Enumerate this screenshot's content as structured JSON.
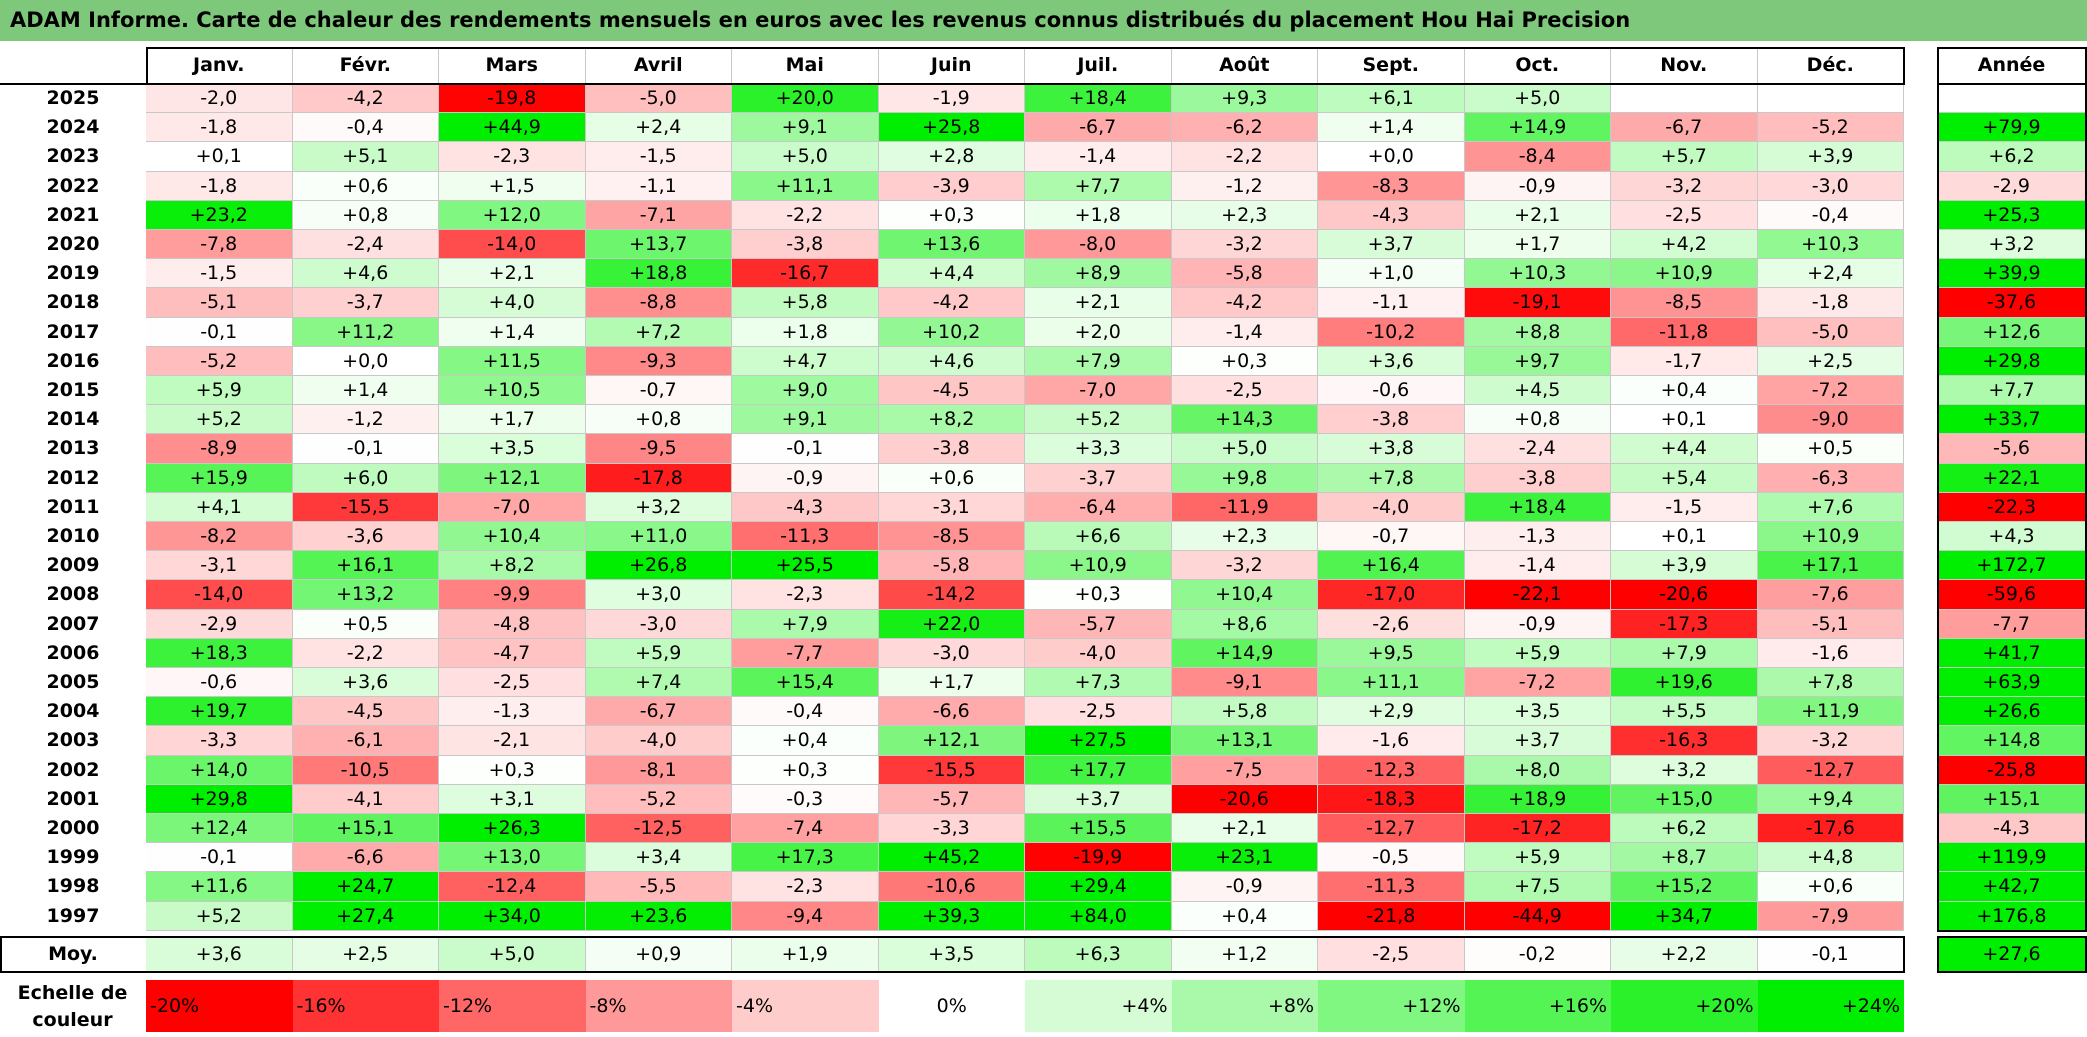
{
  "title": "ADAM Informe. Carte de chaleur des rendements mensuels en euros avec les revenus connus distribués du placement Hou Hai Precision",
  "months": [
    "Janv.",
    "Févr.",
    "Mars",
    "Avril",
    "Mai",
    "Juin",
    "Juil.",
    "Août",
    "Sept.",
    "Oct.",
    "Nov.",
    "Déc."
  ],
  "annual_header": "Année",
  "average_label": "Moy.",
  "scale_label": "Echelle de couleur",
  "colors": {
    "title_bar": "#7dc87a",
    "negative_strong": "#ff0000",
    "neutral": "#ffffff",
    "positive_strong": "#00ee00"
  },
  "chart_data": {
    "type": "heatmap",
    "title": "ADAM Informe. Carte de chaleur des rendements mensuels en euros avec les revenus connus distribués du placement Hou Hai Precision",
    "columns": [
      "Janv.",
      "Févr.",
      "Mars",
      "Avril",
      "Mai",
      "Juin",
      "Juil.",
      "Août",
      "Sept.",
      "Oct.",
      "Nov.",
      "Déc."
    ],
    "rows": [
      {
        "year": "2025",
        "values": [
          "-2,0",
          "-4,2",
          "-19,8",
          "-5,0",
          "+20,0",
          "-1,9",
          "+18,4",
          "+9,3",
          "+6,1",
          "+5,0",
          "",
          ""
        ],
        "annual": ""
      },
      {
        "year": "2024",
        "values": [
          "-1,8",
          "-0,4",
          "+44,9",
          "+2,4",
          "+9,1",
          "+25,8",
          "-6,7",
          "-6,2",
          "+1,4",
          "+14,9",
          "-6,7",
          "-5,2"
        ],
        "annual": "+79,9"
      },
      {
        "year": "2023",
        "values": [
          "+0,1",
          "+5,1",
          "-2,3",
          "-1,5",
          "+5,0",
          "+2,8",
          "-1,4",
          "-2,2",
          "+0,0",
          "-8,4",
          "+5,7",
          "+3,9"
        ],
        "annual": "+6,2"
      },
      {
        "year": "2022",
        "values": [
          "-1,8",
          "+0,6",
          "+1,5",
          "-1,1",
          "+11,1",
          "-3,9",
          "+7,7",
          "-1,2",
          "-8,3",
          "-0,9",
          "-3,2",
          "-3,0"
        ],
        "annual": "-2,9"
      },
      {
        "year": "2021",
        "values": [
          "+23,2",
          "+0,8",
          "+12,0",
          "-7,1",
          "-2,2",
          "+0,3",
          "+1,8",
          "+2,3",
          "-4,3",
          "+2,1",
          "-2,5",
          "-0,4"
        ],
        "annual": "+25,3"
      },
      {
        "year": "2020",
        "values": [
          "-7,8",
          "-2,4",
          "-14,0",
          "+13,7",
          "-3,8",
          "+13,6",
          "-8,0",
          "-3,2",
          "+3,7",
          "+1,7",
          "+4,2",
          "+10,3"
        ],
        "annual": "+3,2"
      },
      {
        "year": "2019",
        "values": [
          "-1,5",
          "+4,6",
          "+2,1",
          "+18,8",
          "-16,7",
          "+4,4",
          "+8,9",
          "-5,8",
          "+1,0",
          "+10,3",
          "+10,9",
          "+2,4"
        ],
        "annual": "+39,9"
      },
      {
        "year": "2018",
        "values": [
          "-5,1",
          "-3,7",
          "+4,0",
          "-8,8",
          "+5,8",
          "-4,2",
          "+2,1",
          "-4,2",
          "-1,1",
          "-19,1",
          "-8,5",
          "-1,8"
        ],
        "annual": "-37,6"
      },
      {
        "year": "2017",
        "values": [
          "-0,1",
          "+11,2",
          "+1,4",
          "+7,2",
          "+1,8",
          "+10,2",
          "+2,0",
          "-1,4",
          "-10,2",
          "+8,8",
          "-11,8",
          "-5,0"
        ],
        "annual": "+12,6"
      },
      {
        "year": "2016",
        "values": [
          "-5,2",
          "+0,0",
          "+11,5",
          "-9,3",
          "+4,7",
          "+4,6",
          "+7,9",
          "+0,3",
          "+3,6",
          "+9,7",
          "-1,7",
          "+2,5"
        ],
        "annual": "+29,8"
      },
      {
        "year": "2015",
        "values": [
          "+5,9",
          "+1,4",
          "+10,5",
          "-0,7",
          "+9,0",
          "-4,5",
          "-7,0",
          "-2,5",
          "-0,6",
          "+4,5",
          "+0,4",
          "-7,2"
        ],
        "annual": "+7,7"
      },
      {
        "year": "2014",
        "values": [
          "+5,2",
          "-1,2",
          "+1,7",
          "+0,8",
          "+9,1",
          "+8,2",
          "+5,2",
          "+14,3",
          "-3,8",
          "+0,8",
          "+0,1",
          "-9,0"
        ],
        "annual": "+33,7"
      },
      {
        "year": "2013",
        "values": [
          "-8,9",
          "-0,1",
          "+3,5",
          "-9,5",
          "-0,1",
          "-3,8",
          "+3,3",
          "+5,0",
          "+3,8",
          "-2,4",
          "+4,4",
          "+0,5"
        ],
        "annual": "-5,6"
      },
      {
        "year": "2012",
        "values": [
          "+15,9",
          "+6,0",
          "+12,1",
          "-17,8",
          "-0,9",
          "+0,6",
          "-3,7",
          "+9,8",
          "+7,8",
          "-3,8",
          "+5,4",
          "-6,3"
        ],
        "annual": "+22,1"
      },
      {
        "year": "2011",
        "values": [
          "+4,1",
          "-15,5",
          "-7,0",
          "+3,2",
          "-4,3",
          "-3,1",
          "-6,4",
          "-11,9",
          "-4,0",
          "+18,4",
          "-1,5",
          "+7,6"
        ],
        "annual": "-22,3"
      },
      {
        "year": "2010",
        "values": [
          "-8,2",
          "-3,6",
          "+10,4",
          "+11,0",
          "-11,3",
          "-8,5",
          "+6,6",
          "+2,3",
          "-0,7",
          "-1,3",
          "+0,1",
          "+10,9"
        ],
        "annual": "+4,3"
      },
      {
        "year": "2009",
        "values": [
          "-3,1",
          "+16,1",
          "+8,2",
          "+26,8",
          "+25,5",
          "-5,8",
          "+10,9",
          "-3,2",
          "+16,4",
          "-1,4",
          "+3,9",
          "+17,1"
        ],
        "annual": "+172,7"
      },
      {
        "year": "2008",
        "values": [
          "-14,0",
          "+13,2",
          "-9,9",
          "+3,0",
          "-2,3",
          "-14,2",
          "+0,3",
          "+10,4",
          "-17,0",
          "-22,1",
          "-20,6",
          "-7,6"
        ],
        "annual": "-59,6"
      },
      {
        "year": "2007",
        "values": [
          "-2,9",
          "+0,5",
          "-4,8",
          "-3,0",
          "+7,9",
          "+22,0",
          "-5,7",
          "+8,6",
          "-2,6",
          "-0,9",
          "-17,3",
          "-5,1"
        ],
        "annual": "-7,7"
      },
      {
        "year": "2006",
        "values": [
          "+18,3",
          "-2,2",
          "-4,7",
          "+5,9",
          "-7,7",
          "-3,0",
          "-4,0",
          "+14,9",
          "+9,5",
          "+5,9",
          "+7,9",
          "-1,6"
        ],
        "annual": "+41,7"
      },
      {
        "year": "2005",
        "values": [
          "-0,6",
          "+3,6",
          "-2,5",
          "+7,4",
          "+15,4",
          "+1,7",
          "+7,3",
          "-9,1",
          "+11,1",
          "-7,2",
          "+19,6",
          "+7,8"
        ],
        "annual": "+63,9"
      },
      {
        "year": "2004",
        "values": [
          "+19,7",
          "-4,5",
          "-1,3",
          "-6,7",
          "-0,4",
          "-6,6",
          "-2,5",
          "+5,8",
          "+2,9",
          "+3,5",
          "+5,5",
          "+11,9"
        ],
        "annual": "+26,6"
      },
      {
        "year": "2003",
        "values": [
          "-3,3",
          "-6,1",
          "-2,1",
          "-4,0",
          "+0,4",
          "+12,1",
          "+27,5",
          "+13,1",
          "-1,6",
          "+3,7",
          "-16,3",
          "-3,2"
        ],
        "annual": "+14,8"
      },
      {
        "year": "2002",
        "values": [
          "+14,0",
          "-10,5",
          "+0,3",
          "-8,1",
          "+0,3",
          "-15,5",
          "+17,7",
          "-7,5",
          "-12,3",
          "+8,0",
          "+3,2",
          "-12,7"
        ],
        "annual": "-25,8"
      },
      {
        "year": "2001",
        "values": [
          "+29,8",
          "-4,1",
          "+3,1",
          "-5,2",
          "-0,3",
          "-5,7",
          "+3,7",
          "-20,6",
          "-18,3",
          "+18,9",
          "+15,0",
          "+9,4"
        ],
        "annual": "+15,1"
      },
      {
        "year": "2000",
        "values": [
          "+12,4",
          "+15,1",
          "+26,3",
          "-12,5",
          "-7,4",
          "-3,3",
          "+15,5",
          "+2,1",
          "-12,7",
          "-17,2",
          "+6,2",
          "-17,6"
        ],
        "annual": "-4,3"
      },
      {
        "year": "1999",
        "values": [
          "-0,1",
          "-6,6",
          "+13,0",
          "+3,4",
          "+17,3",
          "+45,2",
          "-19,9",
          "+23,1",
          "-0,5",
          "+5,9",
          "+8,7",
          "+4,8"
        ],
        "annual": "+119,9"
      },
      {
        "year": "1998",
        "values": [
          "+11,6",
          "+24,7",
          "-12,4",
          "-5,5",
          "-2,3",
          "-10,6",
          "+29,4",
          "-0,9",
          "-11,3",
          "+7,5",
          "+15,2",
          "+0,6"
        ],
        "annual": "+42,7"
      },
      {
        "year": "1997",
        "values": [
          "+5,2",
          "+27,4",
          "+34,0",
          "+23,6",
          "-9,4",
          "+39,3",
          "+84,0",
          "+0,4",
          "-21,8",
          "-44,9",
          "+34,7",
          "-7,9"
        ],
        "annual": "+176,8"
      }
    ],
    "average": {
      "label": "Moy.",
      "values": [
        "+3,6",
        "+2,5",
        "+5,0",
        "+0,9",
        "+1,9",
        "+3,5",
        "+6,3",
        "+1,2",
        "-2,5",
        "-0,2",
        "+2,2",
        "-0,1"
      ],
      "annual": "+27,6"
    },
    "color_scale": [
      "-20%",
      "-16%",
      "-12%",
      "-8%",
      "-4%",
      "0%",
      "+4%",
      "+8%",
      "+12%",
      "+16%",
      "+20%",
      "+24%"
    ],
    "color_scale_min": -20,
    "color_scale_max": 24
  }
}
